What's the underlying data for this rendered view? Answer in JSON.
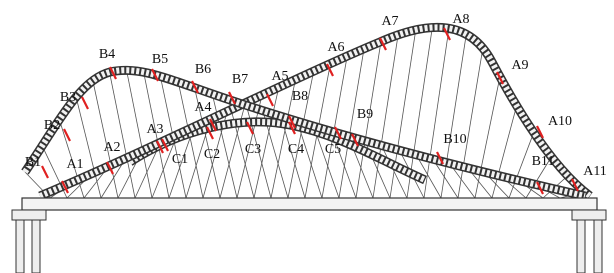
{
  "labels": {
    "A": [
      "A1",
      "A2",
      "A3",
      "A4",
      "A5",
      "A6",
      "A7",
      "A8",
      "A9",
      "A10",
      "A11"
    ],
    "B": [
      "B1",
      "B2",
      "B3",
      "B4",
      "B5",
      "B6",
      "B7",
      "B8",
      "B9",
      "B10",
      "B11"
    ],
    "C": [
      "C1",
      "C2",
      "C3",
      "C4",
      "C5"
    ]
  }
}
